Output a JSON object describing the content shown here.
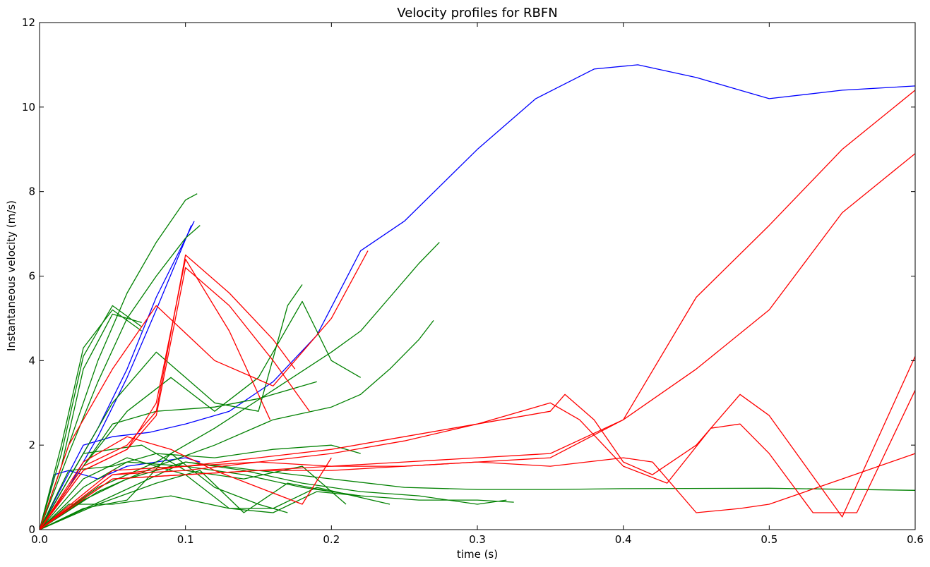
{
  "chart_data": {
    "type": "line",
    "title": "Velocity profiles for RBFN",
    "xlabel": "time (s)",
    "ylabel": "Instantaneous velocity (m/s)",
    "xlim": [
      0,
      0.6
    ],
    "ylim": [
      0,
      12
    ],
    "xticks": [
      "0.0",
      "0.1",
      "0.2",
      "0.3",
      "0.4",
      "0.5",
      "0.6"
    ],
    "yticks": [
      "0",
      "2",
      "4",
      "6",
      "8",
      "10",
      "12"
    ],
    "grid": false,
    "legend": "none",
    "colors": {
      "blue": "#0000ff",
      "green": "#008000",
      "red": "#ff0000"
    },
    "series": [
      {
        "color": "blue",
        "x": [
          0,
          0.03,
          0.05,
          0.075,
          0.1,
          0.13,
          0.16,
          0.19,
          0.22,
          0.25,
          0.3,
          0.34,
          0.38,
          0.41,
          0.45,
          0.5,
          0.55,
          0.6
        ],
        "y": [
          0,
          2.0,
          2.2,
          2.3,
          2.5,
          2.8,
          3.5,
          4.6,
          6.6,
          7.3,
          9.0,
          10.2,
          10.9,
          11.0,
          10.7,
          10.2,
          10.4,
          10.5
        ]
      },
      {
        "color": "blue",
        "x": [
          0,
          0.02,
          0.04,
          0.06,
          0.08,
          0.106
        ],
        "y": [
          0,
          1.2,
          2.4,
          3.8,
          5.5,
          7.3
        ]
      },
      {
        "color": "blue",
        "x": [
          0,
          0.02,
          0.04,
          0.06,
          0.08,
          0.104
        ],
        "y": [
          0,
          1.0,
          2.2,
          3.6,
          5.2,
          7.2
        ]
      },
      {
        "color": "blue",
        "x": [
          0,
          0.01,
          0.02,
          0.04,
          0.06,
          0.08,
          0.1,
          0.11
        ],
        "y": [
          0,
          1.3,
          1.4,
          1.2,
          1.5,
          1.6,
          1.7,
          1.6
        ]
      },
      {
        "color": "green",
        "x": [
          0,
          0.02,
          0.04,
          0.06,
          0.08,
          0.1,
          0.108
        ],
        "y": [
          0,
          2.0,
          4.0,
          5.6,
          6.8,
          7.8,
          7.95
        ]
      },
      {
        "color": "green",
        "x": [
          0,
          0.02,
          0.04,
          0.06,
          0.08,
          0.1,
          0.11
        ],
        "y": [
          0,
          1.8,
          3.5,
          5.0,
          6.0,
          6.9,
          7.2
        ]
      },
      {
        "color": "green",
        "x": [
          0,
          0.015,
          0.03,
          0.05,
          0.07
        ],
        "y": [
          0,
          1.8,
          4.1,
          5.3,
          4.8
        ]
      },
      {
        "color": "green",
        "x": [
          0,
          0.015,
          0.03,
          0.05,
          0.07
        ],
        "y": [
          0,
          2.0,
          4.3,
          5.2,
          4.7
        ]
      },
      {
        "color": "green",
        "x": [
          0,
          0.015,
          0.03,
          0.05,
          0.07
        ],
        "y": [
          0,
          1.5,
          3.8,
          5.1,
          4.9
        ]
      },
      {
        "color": "green",
        "x": [
          0,
          0.02,
          0.05,
          0.08,
          0.1,
          0.12,
          0.15,
          0.17,
          0.18
        ],
        "y": [
          0,
          1.2,
          3.0,
          4.2,
          3.6,
          3.0,
          2.8,
          5.3,
          5.8
        ]
      },
      {
        "color": "green",
        "x": [
          0,
          0.03,
          0.06,
          0.09,
          0.12,
          0.15,
          0.18,
          0.2,
          0.22
        ],
        "y": [
          0,
          1.5,
          2.8,
          3.6,
          2.8,
          3.6,
          5.4,
          4.0,
          3.6
        ]
      },
      {
        "color": "green",
        "x": [
          0,
          0.04,
          0.08,
          0.12,
          0.16,
          0.2,
          0.22,
          0.24,
          0.26,
          0.274
        ],
        "y": [
          0,
          1.0,
          1.6,
          2.4,
          3.3,
          4.2,
          4.7,
          5.5,
          6.3,
          6.8
        ]
      },
      {
        "color": "green",
        "x": [
          0,
          0.04,
          0.08,
          0.12,
          0.16,
          0.2,
          0.22,
          0.24,
          0.26,
          0.27
        ],
        "y": [
          0,
          0.9,
          1.5,
          2.0,
          2.6,
          2.9,
          3.2,
          3.8,
          4.5,
          4.95
        ]
      },
      {
        "color": "green",
        "x": [
          0,
          0.05,
          0.1,
          0.15,
          0.2,
          0.25,
          0.3,
          0.35,
          0.4,
          0.5,
          0.6
        ],
        "y": [
          0,
          0.8,
          1.6,
          1.4,
          1.2,
          1.0,
          0.95,
          0.95,
          0.97,
          0.98,
          0.93
        ]
      },
      {
        "color": "green",
        "x": [
          0,
          0.03,
          0.06,
          0.1,
          0.14,
          0.18,
          0.22,
          0.26,
          0.3,
          0.325
        ],
        "y": [
          0,
          1.0,
          1.6,
          1.5,
          1.3,
          1.0,
          0.8,
          0.7,
          0.7,
          0.65
        ]
      },
      {
        "color": "green",
        "x": [
          0,
          0.03,
          0.06,
          0.1,
          0.14,
          0.18,
          0.22,
          0.26,
          0.3,
          0.32
        ],
        "y": [
          0,
          0.7,
          1.2,
          1.6,
          1.4,
          1.1,
          0.9,
          0.8,
          0.6,
          0.7
        ]
      },
      {
        "color": "green",
        "x": [
          0,
          0.02,
          0.05,
          0.09,
          0.13,
          0.16,
          0.19,
          0.22
        ],
        "y": [
          0,
          0.6,
          0.6,
          0.8,
          0.5,
          0.4,
          0.9,
          0.8
        ]
      },
      {
        "color": "green",
        "x": [
          0,
          0.02,
          0.05,
          0.08,
          0.12,
          0.16,
          0.2,
          0.22
        ],
        "y": [
          0,
          1.4,
          1.5,
          1.8,
          1.7,
          1.9,
          2.0,
          1.8
        ]
      },
      {
        "color": "green",
        "x": [
          0,
          0.03,
          0.07,
          0.1,
          0.14,
          0.18,
          0.21
        ],
        "y": [
          0,
          1.8,
          2.0,
          1.4,
          1.2,
          1.5,
          0.6
        ]
      },
      {
        "color": "green",
        "x": [
          0,
          0.02,
          0.05,
          0.08,
          0.12,
          0.15,
          0.19
        ],
        "y": [
          0,
          1.0,
          2.5,
          2.8,
          2.9,
          3.1,
          3.5
        ]
      },
      {
        "color": "green",
        "x": [
          0,
          0.03,
          0.06,
          0.09,
          0.12,
          0.15,
          0.17
        ],
        "y": [
          0,
          0.5,
          0.7,
          1.8,
          1.0,
          0.6,
          0.4
        ]
      },
      {
        "color": "green",
        "x": [
          0,
          0.04,
          0.08,
          0.11,
          0.14,
          0.17,
          0.2
        ],
        "y": [
          0,
          0.6,
          1.1,
          1.4,
          0.4,
          1.1,
          0.9
        ]
      },
      {
        "color": "green",
        "x": [
          0,
          0.03,
          0.06,
          0.1,
          0.13,
          0.16,
          0.19,
          0.24
        ],
        "y": [
          0,
          1.2,
          1.7,
          1.3,
          0.5,
          0.5,
          1.0,
          0.6
        ]
      },
      {
        "color": "red",
        "x": [
          0,
          0.02,
          0.05,
          0.08,
          0.12,
          0.16,
          0.2,
          0.225
        ],
        "y": [
          0,
          2.0,
          3.8,
          5.3,
          4.0,
          3.4,
          5.0,
          6.6
        ]
      },
      {
        "color": "red",
        "x": [
          0,
          0.03,
          0.06,
          0.08,
          0.1,
          0.13,
          0.16,
          0.175
        ],
        "y": [
          0,
          1.5,
          2.0,
          2.8,
          6.5,
          5.6,
          4.5,
          3.8
        ]
      },
      {
        "color": "red",
        "x": [
          0,
          0.03,
          0.06,
          0.08,
          0.1,
          0.13,
          0.16,
          0.185
        ],
        "y": [
          0,
          1.4,
          1.9,
          2.7,
          6.2,
          5.3,
          4.0,
          2.8
        ]
      },
      {
        "color": "red",
        "x": [
          0,
          0.03,
          0.06,
          0.08,
          0.1,
          0.13,
          0.158
        ],
        "y": [
          0,
          1.4,
          1.9,
          3.0,
          6.4,
          4.7,
          2.6
        ]
      },
      {
        "color": "red",
        "x": [
          0,
          0.03,
          0.06,
          0.09,
          0.12,
          0.15,
          0.18,
          0.2
        ],
        "y": [
          0,
          1.6,
          2.2,
          1.9,
          1.4,
          1.0,
          0.6,
          1.7
        ]
      },
      {
        "color": "red",
        "x": [
          0,
          0.05,
          0.1,
          0.15,
          0.2,
          0.25,
          0.3,
          0.35,
          0.36,
          0.38,
          0.4,
          0.42,
          0.45,
          0.48,
          0.5,
          0.55,
          0.6
        ],
        "y": [
          0,
          1.4,
          1.5,
          1.7,
          1.9,
          2.2,
          2.5,
          2.8,
          3.2,
          2.6,
          1.6,
          1.3,
          2.0,
          3.2,
          2.7,
          0.3,
          4.1
        ]
      },
      {
        "color": "red",
        "x": [
          0,
          0.05,
          0.1,
          0.15,
          0.2,
          0.25,
          0.3,
          0.35,
          0.37,
          0.4,
          0.43,
          0.46,
          0.48,
          0.5,
          0.53,
          0.56,
          0.6
        ],
        "y": [
          0,
          1.3,
          1.4,
          1.6,
          1.8,
          2.1,
          2.5,
          3.0,
          2.6,
          1.5,
          1.1,
          2.4,
          2.5,
          1.8,
          0.4,
          0.4,
          3.3
        ]
      },
      {
        "color": "red",
        "x": [
          0,
          0.05,
          0.1,
          0.15,
          0.2,
          0.25,
          0.3,
          0.35,
          0.4,
          0.45,
          0.5,
          0.55,
          0.6
        ],
        "y": [
          0,
          1.3,
          1.5,
          1.6,
          1.5,
          1.6,
          1.7,
          1.8,
          2.6,
          5.5,
          7.2,
          9.0,
          10.4
        ]
      },
      {
        "color": "red",
        "x": [
          0,
          0.05,
          0.1,
          0.15,
          0.2,
          0.25,
          0.3,
          0.35,
          0.4,
          0.45,
          0.5,
          0.55,
          0.6
        ],
        "y": [
          0,
          1.2,
          1.3,
          1.4,
          1.5,
          1.5,
          1.6,
          1.7,
          2.6,
          3.8,
          5.2,
          7.5,
          8.9
        ]
      },
      {
        "color": "red",
        "x": [
          0,
          0.05,
          0.1,
          0.15,
          0.2,
          0.25,
          0.3,
          0.35,
          0.4,
          0.42,
          0.45,
          0.48,
          0.5,
          0.55,
          0.6
        ],
        "y": [
          0,
          1.2,
          1.3,
          1.4,
          1.4,
          1.5,
          1.6,
          1.5,
          1.7,
          1.6,
          0.4,
          0.5,
          0.6,
          1.2,
          1.8
        ]
      }
    ]
  }
}
